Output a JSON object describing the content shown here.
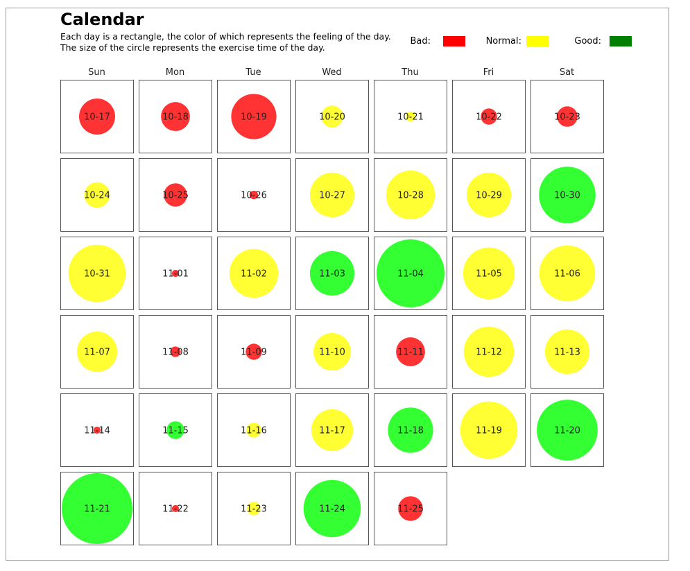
{
  "title": "Calendar",
  "subtitle_lines": [
    "Each day is a rectangle, the color of which represents the feeling of the day.",
    "The size of the circle represents the exercise time of the day."
  ],
  "legend": [
    {
      "label": "Bad:",
      "color": "#ff0000"
    },
    {
      "label": "Normal:",
      "color": "#ffff00"
    },
    {
      "label": "Good:",
      "color": "#008000"
    }
  ],
  "colors": {
    "bad_circle": "#ff3333",
    "normal_circle": "#ffff33",
    "good_circle": "#33ff33",
    "cell_border": "#555555"
  },
  "chart_data": {
    "type": "calendar",
    "weekdays": [
      "Sun",
      "Mon",
      "Tue",
      "Wed",
      "Thu",
      "Fri",
      "Sat"
    ],
    "days": [
      {
        "date": "10-17",
        "feeling": "bad",
        "exercise": 0.51
      },
      {
        "date": "10-18",
        "feeling": "bad",
        "exercise": 0.41
      },
      {
        "date": "10-19",
        "feeling": "bad",
        "exercise": 0.64
      },
      {
        "date": "10-20",
        "feeling": "normal",
        "exercise": 0.31
      },
      {
        "date": "10-21",
        "feeling": "normal",
        "exercise": 0.14
      },
      {
        "date": "10-22",
        "feeling": "bad",
        "exercise": 0.23
      },
      {
        "date": "10-23",
        "feeling": "bad",
        "exercise": 0.29
      },
      {
        "date": "10-24",
        "feeling": "normal",
        "exercise": 0.36
      },
      {
        "date": "10-25",
        "feeling": "bad",
        "exercise": 0.33
      },
      {
        "date": "10-26",
        "feeling": "bad",
        "exercise": 0.12
      },
      {
        "date": "10-27",
        "feeling": "normal",
        "exercise": 0.63
      },
      {
        "date": "10-28",
        "feeling": "normal",
        "exercise": 0.69
      },
      {
        "date": "10-29",
        "feeling": "normal",
        "exercise": 0.63
      },
      {
        "date": "10-30",
        "feeling": "good",
        "exercise": 0.8
      },
      {
        "date": "10-31",
        "feeling": "normal",
        "exercise": 0.81
      },
      {
        "date": "11-01",
        "feeling": "bad",
        "exercise": 0.1
      },
      {
        "date": "11-02",
        "feeling": "normal",
        "exercise": 0.69
      },
      {
        "date": "11-03",
        "feeling": "good",
        "exercise": 0.63
      },
      {
        "date": "11-04",
        "feeling": "good",
        "exercise": 0.96
      },
      {
        "date": "11-05",
        "feeling": "normal",
        "exercise": 0.73
      },
      {
        "date": "11-06",
        "feeling": "normal",
        "exercise": 0.79
      },
      {
        "date": "11-07",
        "feeling": "normal",
        "exercise": 0.57
      },
      {
        "date": "11-08",
        "feeling": "bad",
        "exercise": 0.15
      },
      {
        "date": "11-09",
        "feeling": "bad",
        "exercise": 0.23
      },
      {
        "date": "11-10",
        "feeling": "normal",
        "exercise": 0.53
      },
      {
        "date": "11-11",
        "feeling": "bad",
        "exercise": 0.41
      },
      {
        "date": "11-12",
        "feeling": "normal",
        "exercise": 0.71
      },
      {
        "date": "11-13",
        "feeling": "normal",
        "exercise": 0.63
      },
      {
        "date": "11-14",
        "feeling": "bad",
        "exercise": 0.1
      },
      {
        "date": "11-15",
        "feeling": "good",
        "exercise": 0.25
      },
      {
        "date": "11-16",
        "feeling": "normal",
        "exercise": 0.21
      },
      {
        "date": "11-17",
        "feeling": "normal",
        "exercise": 0.59
      },
      {
        "date": "11-18",
        "feeling": "good",
        "exercise": 0.64
      },
      {
        "date": "11-19",
        "feeling": "normal",
        "exercise": 0.81
      },
      {
        "date": "11-20",
        "feeling": "good",
        "exercise": 0.86
      },
      {
        "date": "11-21",
        "feeling": "good",
        "exercise": 1.0
      },
      {
        "date": "11-22",
        "feeling": "bad",
        "exercise": 0.1
      },
      {
        "date": "11-23",
        "feeling": "normal",
        "exercise": 0.19
      },
      {
        "date": "11-24",
        "feeling": "good",
        "exercise": 0.81
      },
      {
        "date": "11-25",
        "feeling": "bad",
        "exercise": 0.35
      }
    ]
  }
}
